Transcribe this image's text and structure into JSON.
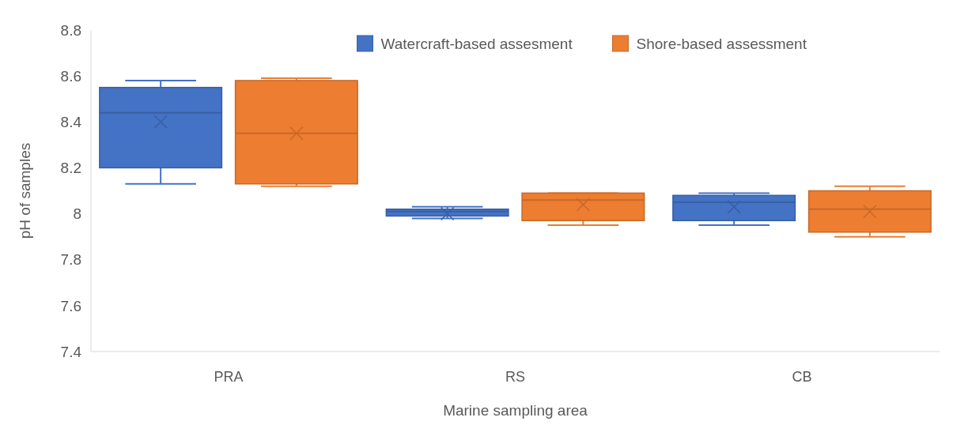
{
  "chart_data": {
    "type": "box",
    "xlabel": "Marine sampling area",
    "ylabel": "pH of samples",
    "categories": [
      "PRA",
      "RS",
      "CB"
    ],
    "ylim": [
      7.4,
      8.8
    ],
    "yticks": [
      7.4,
      7.6,
      7.8,
      8,
      8.2,
      8.4,
      8.6,
      8.8
    ],
    "grid": false,
    "legend": "top",
    "marker": "cross",
    "series": [
      {
        "name": "Watercraft-based assesment",
        "color": "#4472c4",
        "boxes": [
          {
            "low": 8.13,
            "q1": 8.2,
            "median": 8.44,
            "q3": 8.55,
            "high": 8.58,
            "mean": 8.4
          },
          {
            "low": 7.98,
            "q1": 7.99,
            "median": 8.01,
            "q3": 8.02,
            "high": 8.03,
            "mean": 8.0
          },
          {
            "low": 7.95,
            "q1": 7.97,
            "median": 8.05,
            "q3": 8.08,
            "high": 8.09,
            "mean": 8.03
          }
        ]
      },
      {
        "name": "Shore-based assessment",
        "color": "#ed7d31",
        "boxes": [
          {
            "low": 8.12,
            "q1": 8.13,
            "median": 8.35,
            "q3": 8.58,
            "high": 8.59,
            "mean": 8.35
          },
          {
            "low": 7.95,
            "q1": 7.97,
            "median": 8.06,
            "q3": 8.09,
            "high": 8.09,
            "mean": 8.04
          },
          {
            "low": 7.9,
            "q1": 7.92,
            "median": 8.02,
            "q3": 8.1,
            "high": 8.12,
            "mean": 8.01
          }
        ]
      }
    ]
  }
}
